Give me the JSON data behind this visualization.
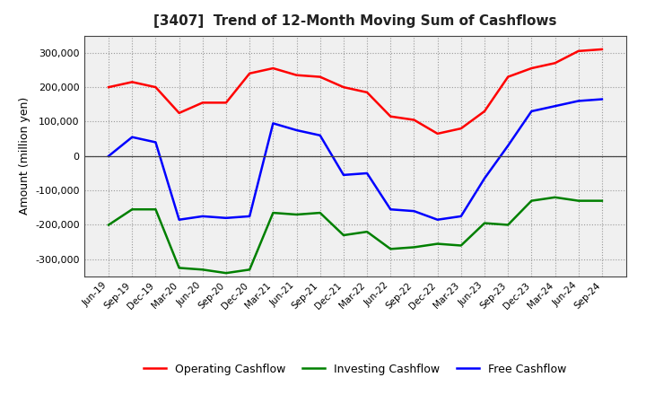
{
  "title": "[3407]  Trend of 12-Month Moving Sum of Cashflows",
  "ylabel": "Amount (million yen)",
  "background_color": "#ffffff",
  "plot_bg_color": "#f0f0f0",
  "grid_color": "#999999",
  "x_labels": [
    "Jun-19",
    "Sep-19",
    "Dec-19",
    "Mar-20",
    "Jun-20",
    "Sep-20",
    "Dec-20",
    "Mar-21",
    "Jun-21",
    "Sep-21",
    "Dec-21",
    "Mar-22",
    "Jun-22",
    "Sep-22",
    "Dec-22",
    "Mar-23",
    "Jun-23",
    "Sep-23",
    "Dec-23",
    "Mar-24",
    "Jun-24",
    "Sep-24"
  ],
  "operating": [
    200000,
    215000,
    200000,
    125000,
    155000,
    155000,
    240000,
    255000,
    235000,
    230000,
    200000,
    185000,
    115000,
    105000,
    65000,
    80000,
    130000,
    230000,
    255000,
    270000,
    305000,
    310000
  ],
  "investing": [
    -200000,
    -155000,
    -155000,
    -325000,
    -330000,
    -340000,
    -330000,
    -165000,
    -170000,
    -165000,
    -230000,
    -220000,
    -270000,
    -265000,
    -255000,
    -260000,
    -195000,
    -200000,
    -130000,
    -120000,
    -130000,
    -130000
  ],
  "free": [
    0,
    55000,
    40000,
    -185000,
    -175000,
    -180000,
    -175000,
    95000,
    75000,
    60000,
    -55000,
    -50000,
    -155000,
    -160000,
    -185000,
    -175000,
    -65000,
    30000,
    130000,
    145000,
    160000,
    165000
  ],
  "ylim": [
    -350000,
    350000
  ],
  "yticks": [
    -300000,
    -200000,
    -100000,
    0,
    100000,
    200000,
    300000
  ],
  "line_colors": {
    "operating": "#ff0000",
    "investing": "#008000",
    "free": "#0000ff"
  },
  "line_width": 1.8,
  "legend_labels": [
    "Operating Cashflow",
    "Investing Cashflow",
    "Free Cashflow"
  ]
}
